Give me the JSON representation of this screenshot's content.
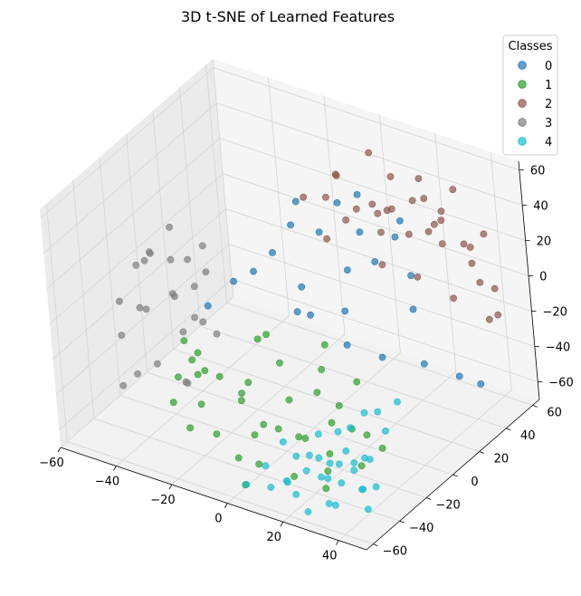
{
  "chart_data": {
    "type": "scatter",
    "projection": "3d",
    "title": "3D t-SNE of Learned Features",
    "legend": {
      "title": "Classes",
      "placement": "top-right"
    },
    "xlim": [
      -60,
      50
    ],
    "ylim": [
      -65,
      65
    ],
    "zlim": [
      -70,
      65
    ],
    "x_ticks": [
      -60,
      -40,
      -20,
      0,
      20,
      40
    ],
    "y_ticks": [
      -60,
      -40,
      -20,
      0,
      20,
      40,
      60
    ],
    "z_ticks": [
      -60,
      -40,
      -20,
      0,
      20,
      40,
      60
    ],
    "grid": true,
    "series": [
      {
        "name": "0",
        "color": "#1f77b4",
        "points": [
          [
            -10,
            20,
            40
          ],
          [
            0,
            30,
            38
          ],
          [
            5,
            35,
            42
          ],
          [
            10,
            25,
            30
          ],
          [
            15,
            40,
            20
          ],
          [
            -15,
            10,
            15
          ],
          [
            -5,
            25,
            22
          ],
          [
            20,
            15,
            25
          ],
          [
            25,
            30,
            10
          ],
          [
            30,
            20,
            0
          ],
          [
            -20,
            5,
            5
          ],
          [
            -25,
            0,
            0
          ],
          [
            10,
            10,
            -5
          ],
          [
            5,
            -5,
            0
          ],
          [
            -5,
            5,
            -10
          ],
          [
            15,
            0,
            -15
          ],
          [
            25,
            5,
            -20
          ],
          [
            35,
            15,
            -25
          ],
          [
            45,
            20,
            -30
          ],
          [
            50,
            25,
            -35
          ],
          [
            -30,
            -10,
            -10
          ],
          [
            0,
            0,
            10
          ],
          [
            -10,
            15,
            30
          ],
          [
            20,
            35,
            35
          ],
          [
            8,
            18,
            12
          ]
        ]
      },
      {
        "name": "1",
        "color": "#2ca02c",
        "points": [
          [
            -30,
            -20,
            -30
          ],
          [
            -20,
            -25,
            -35
          ],
          [
            -10,
            -30,
            -40
          ],
          [
            0,
            -35,
            -45
          ],
          [
            10,
            -30,
            -50
          ],
          [
            20,
            -25,
            -40
          ],
          [
            30,
            -20,
            -45
          ],
          [
            -25,
            -30,
            -50
          ],
          [
            -15,
            -40,
            -55
          ],
          [
            -5,
            -45,
            -60
          ],
          [
            5,
            -50,
            -55
          ],
          [
            15,
            -45,
            -60
          ],
          [
            25,
            -40,
            -55
          ],
          [
            35,
            -35,
            -50
          ],
          [
            -35,
            -15,
            -40
          ],
          [
            -40,
            -10,
            -35
          ],
          [
            0,
            -20,
            -20
          ],
          [
            10,
            -10,
            -25
          ],
          [
            -10,
            -15,
            -15
          ],
          [
            20,
            -5,
            -30
          ],
          [
            -20,
            -35,
            -25
          ],
          [
            5,
            -25,
            -35
          ],
          [
            15,
            -35,
            -45
          ],
          [
            -30,
            -40,
            -45
          ],
          [
            30,
            -30,
            -35
          ],
          [
            -15,
            -20,
            -45
          ],
          [
            8,
            -40,
            -40
          ],
          [
            -8,
            -28,
            -30
          ],
          [
            18,
            -15,
            -38
          ],
          [
            -28,
            -25,
            -38
          ],
          [
            2,
            -55,
            -65
          ],
          [
            12,
            -10,
            -10
          ],
          [
            -12,
            -5,
            -20
          ],
          [
            28,
            -48,
            -58
          ],
          [
            -22,
            -45,
            -52
          ],
          [
            38,
            -25,
            -45
          ],
          [
            -38,
            -20,
            -48
          ],
          [
            22,
            -32,
            -52
          ],
          [
            -2,
            -38,
            -50
          ],
          [
            14,
            -22,
            -28
          ]
        ]
      },
      {
        "name": "2",
        "color": "#8c564b",
        "points": [
          [
            10,
            50,
            45
          ],
          [
            20,
            45,
            40
          ],
          [
            30,
            40,
            35
          ],
          [
            0,
            55,
            50
          ],
          [
            -10,
            50,
            35
          ],
          [
            25,
            55,
            30
          ],
          [
            35,
            50,
            20
          ],
          [
            40,
            45,
            15
          ],
          [
            15,
            60,
            40
          ],
          [
            5,
            45,
            30
          ],
          [
            -5,
            40,
            45
          ],
          [
            20,
            30,
            45
          ],
          [
            30,
            55,
            45
          ],
          [
            45,
            40,
            10
          ],
          [
            40,
            30,
            5
          ],
          [
            10,
            40,
            20
          ],
          [
            0,
            35,
            25
          ],
          [
            -15,
            35,
            30
          ],
          [
            25,
            45,
            25
          ],
          [
            35,
            35,
            30
          ],
          [
            15,
            50,
            15
          ],
          [
            45,
            50,
            0
          ],
          [
            50,
            35,
            -5
          ],
          [
            5,
            55,
            20
          ],
          [
            -5,
            30,
            15
          ],
          [
            20,
            20,
            20
          ],
          [
            30,
            25,
            15
          ],
          [
            40,
            55,
            25
          ],
          [
            12,
            35,
            35
          ],
          [
            22,
            60,
            20
          ],
          [
            -12,
            45,
            25
          ],
          [
            32,
            60,
            10
          ],
          [
            8,
            28,
            40
          ],
          [
            28,
            38,
            50
          ],
          [
            48,
            45,
            -10
          ]
        ]
      },
      {
        "name": "3",
        "color": "#7f7f7f",
        "points": [
          [
            -50,
            -10,
            10
          ],
          [
            -45,
            -5,
            5
          ],
          [
            -55,
            0,
            0
          ],
          [
            -40,
            -15,
            -5
          ],
          [
            -60,
            5,
            -10
          ],
          [
            -50,
            -20,
            -15
          ],
          [
            -45,
            10,
            -20
          ],
          [
            -35,
            -5,
            -25
          ],
          [
            -55,
            -25,
            -30
          ],
          [
            -40,
            -30,
            -35
          ],
          [
            -30,
            -20,
            -10
          ],
          [
            -60,
            -15,
            -20
          ],
          [
            -45,
            -35,
            -40
          ],
          [
            -35,
            0,
            0
          ],
          [
            -55,
            15,
            5
          ],
          [
            -50,
            5,
            -25
          ],
          [
            -40,
            -10,
            -30
          ],
          [
            -30,
            -30,
            -40
          ],
          [
            -25,
            -15,
            -20
          ],
          [
            -45,
            -25,
            -10
          ],
          [
            -38,
            5,
            10
          ],
          [
            -58,
            -5,
            -5
          ],
          [
            -48,
            -40,
            -45
          ],
          [
            -32,
            -25,
            -45
          ],
          [
            -52,
            20,
            -15
          ]
        ]
      },
      {
        "name": "4",
        "color": "#17becf",
        "points": [
          [
            30,
            -40,
            -30
          ],
          [
            35,
            -45,
            -35
          ],
          [
            40,
            -50,
            -40
          ],
          [
            25,
            -55,
            -45
          ],
          [
            45,
            -35,
            -25
          ],
          [
            20,
            -60,
            -50
          ],
          [
            35,
            -60,
            -55
          ],
          [
            40,
            -30,
            -20
          ],
          [
            30,
            -50,
            -50
          ],
          [
            45,
            -55,
            -45
          ],
          [
            25,
            -45,
            -55
          ],
          [
            15,
            -50,
            -60
          ],
          [
            35,
            -40,
            -45
          ],
          [
            40,
            -60,
            -30
          ],
          [
            45,
            -45,
            -50
          ],
          [
            20,
            -35,
            -40
          ],
          [
            30,
            -55,
            -35
          ],
          [
            10,
            -55,
            -50
          ],
          [
            5,
            -60,
            -60
          ],
          [
            38,
            -38,
            -42
          ],
          [
            28,
            -62,
            -62
          ],
          [
            42,
            -42,
            -38
          ],
          [
            18,
            -48,
            -45
          ],
          [
            48,
            -60,
            -40
          ],
          [
            32,
            -35,
            -30
          ],
          [
            22,
            -58,
            -58
          ],
          [
            12,
            -45,
            -42
          ],
          [
            45,
            -25,
            -15
          ],
          [
            36,
            -52,
            -48
          ],
          [
            26,
            -40,
            -50
          ],
          [
            40,
            -65,
            -50
          ],
          [
            15,
            -62,
            -55
          ],
          [
            34,
            -28,
            -25
          ],
          [
            44,
            -50,
            -60
          ],
          [
            24,
            -50,
            -40
          ]
        ]
      }
    ]
  }
}
